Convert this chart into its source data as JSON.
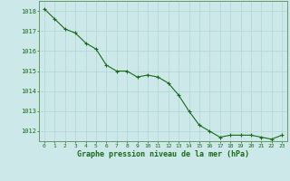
{
  "hours": [
    0,
    1,
    2,
    3,
    4,
    5,
    6,
    7,
    8,
    9,
    10,
    11,
    12,
    13,
    14,
    15,
    16,
    17,
    18,
    19,
    20,
    21,
    22,
    23
  ],
  "pressure": [
    1018.1,
    1017.6,
    1017.1,
    1016.9,
    1016.4,
    1016.1,
    1015.3,
    1015.0,
    1015.0,
    1014.7,
    1014.8,
    1014.7,
    1014.4,
    1013.8,
    1013.0,
    1012.3,
    1012.0,
    1011.7,
    1011.8,
    1011.8,
    1011.8,
    1011.7,
    1011.6,
    1011.8
  ],
  "line_color": "#1a6b1a",
  "marker_color": "#1a6b1a",
  "bg_color": "#cce8e8",
  "grid_color": "#b0d4d4",
  "tick_label_color": "#1a6b1a",
  "xlabel": "Graphe pression niveau de la mer (hPa)",
  "xlabel_color": "#1a6b1a",
  "ylim_min": 1011.5,
  "ylim_max": 1018.5,
  "spine_color": "#669966"
}
